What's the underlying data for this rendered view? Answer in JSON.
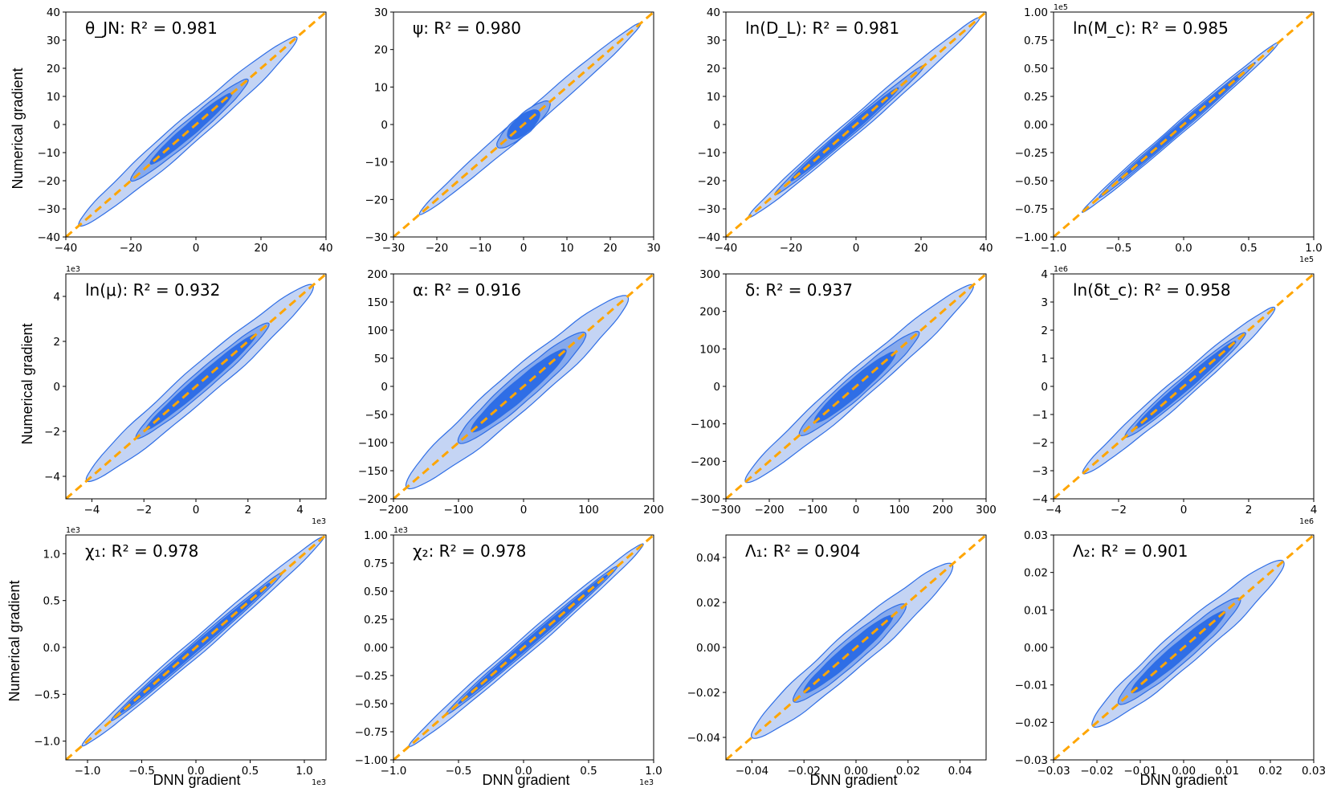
{
  "figure": {
    "xlabel": "DNN gradient",
    "ylabel": "Numerical gradient",
    "colors": {
      "outer_fill": "#c4d4f4",
      "mid_fill": "#86a9ec",
      "inner_fill": "#2f6ee6",
      "contour_line": "#2f6ee6",
      "identity_line": "#ffa500",
      "axes": "#000000"
    }
  },
  "chart_data": [
    {
      "type": "contour",
      "title": "θ_JN: R² = 0.981",
      "param": "θ_JN",
      "r2": "0.981",
      "xlim": [
        -40,
        40
      ],
      "ylim": [
        -40,
        40
      ],
      "xticks": [
        -40,
        -20,
        0,
        20,
        40
      ],
      "xtick_labels": [
        "−40",
        "−20",
        "0",
        "20",
        "40"
      ],
      "yticks": [
        -40,
        -30,
        -20,
        -10,
        0,
        10,
        20,
        30,
        40
      ],
      "ytick_labels": [
        "−40",
        "−30",
        "−20",
        "−10",
        "0",
        "10",
        "20",
        "30",
        "40"
      ],
      "x_sci": "",
      "y_sci": "",
      "outer": {
        "range": [
          -36,
          31
        ],
        "width": 6.5
      },
      "mid": {
        "range": [
          -20,
          16
        ],
        "width": 4.5
      },
      "inner": {
        "range": [
          -14,
          11
        ],
        "width": 3
      }
    },
    {
      "type": "contour",
      "title": "ψ: R² = 0.980",
      "param": "ψ",
      "r2": "0.980",
      "xlim": [
        -30,
        30
      ],
      "ylim": [
        -30,
        30
      ],
      "xticks": [
        -30,
        -20,
        -10,
        0,
        10,
        20,
        30
      ],
      "xtick_labels": [
        "−30",
        "−20",
        "−10",
        "0",
        "10",
        "20",
        "30"
      ],
      "yticks": [
        -30,
        -20,
        -10,
        0,
        10,
        20,
        30
      ],
      "ytick_labels": [
        "−30",
        "−20",
        "−10",
        "0",
        "10",
        "20",
        "30"
      ],
      "x_sci": "",
      "y_sci": "",
      "outer": {
        "range": [
          -24,
          27
        ],
        "width": 3.2
      },
      "mid": {
        "range": [
          -6,
          6
        ],
        "width": 3.5
      },
      "inner": {
        "range": [
          -3.5,
          3.5
        ],
        "width": 3.2
      }
    },
    {
      "type": "contour",
      "title": "ln(D_L): R² = 0.981",
      "param": "ln(D_L)",
      "r2": "0.981",
      "xlim": [
        -40,
        40
      ],
      "ylim": [
        -40,
        40
      ],
      "xticks": [
        -40,
        -20,
        0,
        20,
        40
      ],
      "xtick_labels": [
        "−40",
        "−20",
        "0",
        "20",
        "40"
      ],
      "yticks": [
        -40,
        -30,
        -20,
        -10,
        0,
        10,
        20,
        30,
        40
      ],
      "ytick_labels": [
        "−40",
        "−30",
        "−20",
        "−10",
        "0",
        "10",
        "20",
        "30",
        "40"
      ],
      "x_sci": "",
      "y_sci": "",
      "outer": {
        "range": [
          -33,
          38
        ],
        "width": 4
      },
      "mid": {
        "range": [
          -25,
          21
        ],
        "width": 2.8
      },
      "inner": {
        "range": [
          -20,
          13
        ],
        "width": 2.1
      }
    },
    {
      "type": "contour",
      "title": "ln(M_c): R² = 0.985",
      "param": "ln(M_c)",
      "r2": "0.985",
      "xlim": [
        -1.0,
        1.0
      ],
      "ylim": [
        -1.0,
        1.0
      ],
      "xticks": [
        -1.0,
        -0.5,
        0.0,
        0.5,
        1.0
      ],
      "xtick_labels": [
        "−1.0",
        "−0.5",
        "0.0",
        "0.5",
        "1.0"
      ],
      "yticks": [
        -1.0,
        -0.75,
        -0.5,
        -0.25,
        0.0,
        0.25,
        0.5,
        0.75,
        1.0
      ],
      "ytick_labels": [
        "−1.00",
        "−0.75",
        "−0.50",
        "−0.25",
        "0.00",
        "0.25",
        "0.50",
        "0.75",
        "1.00"
      ],
      "x_sci": "1e5",
      "y_sci": "1e5",
      "outer": {
        "range": [
          -0.78,
          0.73
        ],
        "width": 0.07
      },
      "mid": {
        "range": [
          -0.65,
          0.55
        ],
        "width": 0.05
      },
      "inner": {
        "range": [
          -0.5,
          0.45
        ],
        "width": 0.035
      }
    },
    {
      "type": "contour",
      "title": "ln(μ): R² = 0.932",
      "param": "ln(μ)",
      "r2": "0.932",
      "xlim": [
        -5,
        5
      ],
      "ylim": [
        -5,
        5
      ],
      "xticks": [
        -4,
        -2,
        0,
        2,
        4
      ],
      "xtick_labels": [
        "−4",
        "−2",
        "0",
        "2",
        "4"
      ],
      "yticks": [
        -4,
        -2,
        0,
        2,
        4
      ],
      "ytick_labels": [
        "−4",
        "−2",
        "0",
        "2",
        "4"
      ],
      "x_sci": "1e3",
      "y_sci": "1e3",
      "outer": {
        "range": [
          -4.2,
          4.5
        ],
        "width": 1.0
      },
      "mid": {
        "range": [
          -2.3,
          2.8
        ],
        "width": 0.6
      },
      "inner": {
        "range": [
          -1.9,
          2.3
        ],
        "width": 0.4
      }
    },
    {
      "type": "contour",
      "title": "α: R² = 0.916",
      "param": "α",
      "r2": "0.916",
      "xlim": [
        -200,
        200
      ],
      "ylim": [
        -200,
        200
      ],
      "xticks": [
        -200,
        -100,
        0,
        100,
        200
      ],
      "xtick_labels": [
        "−200",
        "−100",
        "0",
        "100",
        "200"
      ],
      "yticks": [
        -200,
        -150,
        -100,
        -50,
        0,
        50,
        100,
        150,
        200
      ],
      "ytick_labels": [
        "−200",
        "−150",
        "−100",
        "−50",
        "0",
        "50",
        "100",
        "150",
        "200"
      ],
      "x_sci": "",
      "y_sci": "",
      "outer": {
        "range": [
          -180,
          160
        ],
        "width": 48
      },
      "mid": {
        "range": [
          -100,
          95
        ],
        "width": 33
      },
      "inner": {
        "range": [
          -80,
          65
        ],
        "width": 23
      }
    },
    {
      "type": "contour",
      "title": "δ: R² = 0.937",
      "param": "δ",
      "r2": "0.937",
      "xlim": [
        -300,
        300
      ],
      "ylim": [
        -300,
        300
      ],
      "xticks": [
        -300,
        -200,
        -100,
        0,
        100,
        200,
        300
      ],
      "xtick_labels": [
        "−300",
        "−200",
        "−100",
        "0",
        "100",
        "200",
        "300"
      ],
      "yticks": [
        -300,
        -200,
        -100,
        0,
        100,
        200,
        300
      ],
      "ytick_labels": [
        "−300",
        "−200",
        "−100",
        "0",
        "100",
        "200",
        "300"
      ],
      "x_sci": "",
      "y_sci": "",
      "outer": {
        "range": [
          -255,
          270
        ],
        "width": 55
      },
      "mid": {
        "range": [
          -130,
          145
        ],
        "width": 40
      },
      "inner": {
        "range": [
          -95,
          90
        ],
        "width": 30
      }
    },
    {
      "type": "contour",
      "title": "ln(δt_c): R² = 0.958",
      "param": "ln(δt_c)",
      "r2": "0.958",
      "xlim": [
        -4,
        4
      ],
      "ylim": [
        -4,
        4
      ],
      "xticks": [
        -4,
        -2,
        0,
        2,
        4
      ],
      "xtick_labels": [
        "−4",
        "−2",
        "0",
        "2",
        "4"
      ],
      "yticks": [
        -4,
        -3,
        -2,
        -1,
        0,
        1,
        2,
        3,
        4
      ],
      "ytick_labels": [
        "−4",
        "−3",
        "−2",
        "−1",
        "0",
        "1",
        "2",
        "3",
        "4"
      ],
      "x_sci": "1e6",
      "y_sci": "1e6",
      "outer": {
        "range": [
          -3.1,
          2.8
        ],
        "width": 0.55
      },
      "mid": {
        "range": [
          -1.8,
          1.9
        ],
        "width": 0.38
      },
      "inner": {
        "range": [
          -1.5,
          1.6
        ],
        "width": 0.26
      }
    },
    {
      "type": "contour",
      "title": "χ₁: R² = 0.978",
      "param": "χ₁",
      "r2": "0.978",
      "xlim": [
        -1.2,
        1.2
      ],
      "ylim": [
        -1.2,
        1.2
      ],
      "xticks": [
        -1.0,
        -0.5,
        0.0,
        0.5,
        1.0
      ],
      "xtick_labels": [
        "−1.0",
        "−0.5",
        "0.0",
        "0.5",
        "1.0"
      ],
      "yticks": [
        -1.0,
        -0.5,
        0.0,
        0.5,
        1.0
      ],
      "ytick_labels": [
        "−1.0",
        "−0.5",
        "0.0",
        "0.5",
        "1.0"
      ],
      "x_sci": "1e3",
      "y_sci": "1e3",
      "outer": {
        "range": [
          -1.05,
          1.18
        ],
        "width": 0.12
      },
      "mid": {
        "range": [
          -0.78,
          0.8
        ],
        "width": 0.08
      },
      "inner": {
        "range": [
          -0.7,
          0.7
        ],
        "width": 0.055
      }
    },
    {
      "type": "contour",
      "title": "χ₂: R² = 0.978",
      "param": "χ₂",
      "r2": "0.978",
      "xlim": [
        -1.0,
        1.0
      ],
      "ylim": [
        -1.0,
        1.0
      ],
      "xticks": [
        -1.0,
        -0.5,
        0.0,
        0.5,
        1.0
      ],
      "xtick_labels": [
        "−1.0",
        "−0.5",
        "0.0",
        "0.5",
        "1.0"
      ],
      "yticks": [
        -1.0,
        -0.75,
        -0.5,
        -0.25,
        0.0,
        0.25,
        0.5,
        0.75,
        1.0
      ],
      "ytick_labels": [
        "−1.00",
        "−0.75",
        "−0.50",
        "−0.25",
        "0.00",
        "0.25",
        "0.50",
        "0.75",
        "1.00"
      ],
      "x_sci": "1e3",
      "y_sci": "1e3",
      "outer": {
        "range": [
          -0.88,
          0.92
        ],
        "width": 0.1
      },
      "mid": {
        "range": [
          -0.6,
          0.72
        ],
        "width": 0.065
      },
      "inner": {
        "range": [
          -0.5,
          0.65
        ],
        "width": 0.045
      }
    },
    {
      "type": "contour",
      "title": "Λ₁: R² = 0.904",
      "param": "Λ₁",
      "r2": "0.904",
      "xlim": [
        -0.05,
        0.05
      ],
      "ylim": [
        -0.05,
        0.05
      ],
      "xticks": [
        -0.04,
        -0.02,
        0.0,
        0.02,
        0.04
      ],
      "xtick_labels": [
        "−0.04",
        "−0.02",
        "0.00",
        "0.02",
        "0.04"
      ],
      "yticks": [
        -0.04,
        -0.02,
        0.0,
        0.02,
        0.04
      ],
      "ytick_labels": [
        "−0.04",
        "−0.02",
        "0.00",
        "0.02",
        "0.04"
      ],
      "x_sci": "",
      "y_sci": "",
      "outer": {
        "range": [
          -0.04,
          0.037
        ],
        "width": 0.011
      },
      "mid": {
        "range": [
          -0.024,
          0.019
        ],
        "width": 0.0075
      },
      "inner": {
        "range": [
          -0.02,
          0.014
        ],
        "width": 0.005
      }
    },
    {
      "type": "contour",
      "title": "Λ₂: R² = 0.901",
      "param": "Λ₂",
      "r2": "0.901",
      "xlim": [
        -0.03,
        0.03
      ],
      "ylim": [
        -0.03,
        0.03
      ],
      "xticks": [
        -0.03,
        -0.02,
        -0.01,
        0.0,
        0.01,
        0.02,
        0.03
      ],
      "xtick_labels": [
        "−0.03",
        "−0.02",
        "−0.01",
        "0.00",
        "0.01",
        "0.02",
        "0.03"
      ],
      "yticks": [
        -0.03,
        -0.02,
        -0.01,
        0.0,
        0.01,
        0.02,
        0.03
      ],
      "ytick_labels": [
        "−0.03",
        "−0.02",
        "−0.01",
        "0.00",
        "0.01",
        "0.02",
        "0.03"
      ],
      "x_sci": "",
      "y_sci": "",
      "outer": {
        "range": [
          -0.021,
          0.023
        ],
        "width": 0.0065
      },
      "mid": {
        "range": [
          -0.015,
          0.013
        ],
        "width": 0.0045
      },
      "inner": {
        "range": [
          -0.012,
          0.0095
        ],
        "width": 0.003
      }
    }
  ]
}
